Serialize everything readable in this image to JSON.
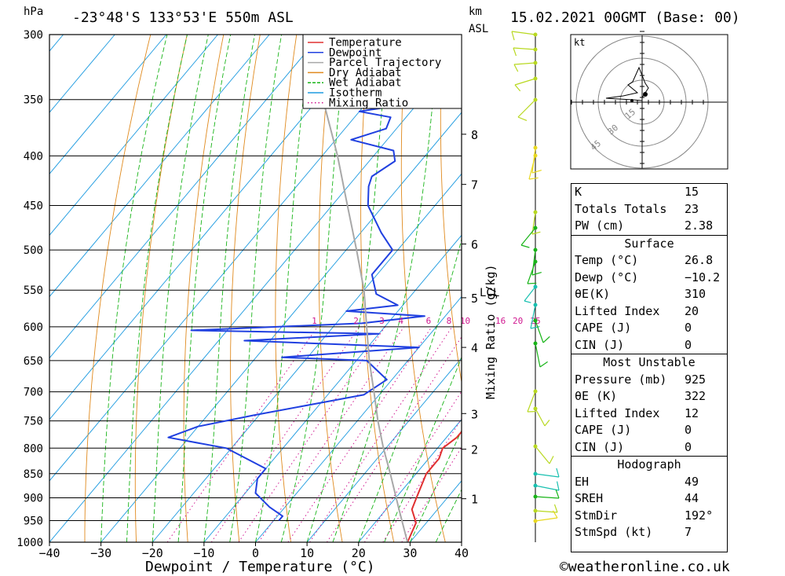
{
  "header": {
    "pressure_unit": "hPa",
    "location": "-23°48'S 133°53'E 550m ASL",
    "height_unit": "km",
    "height_unit_sub": "ASL",
    "datetime": "15.02.2021 00GMT (Base: 00)"
  },
  "chart_data": {
    "type": "skew-t",
    "xlabel": "Dewpoint / Temperature (°C)",
    "ylabel": "hPa",
    "xlim": [
      -40,
      40
    ],
    "ylim": [
      1000,
      300
    ],
    "x_ticks": [
      "−40",
      "−30",
      "−20",
      "−10",
      "0",
      "10",
      "20",
      "30",
      "40"
    ],
    "y_ticks": [
      300,
      350,
      400,
      450,
      500,
      550,
      600,
      650,
      700,
      750,
      800,
      850,
      900,
      950,
      1000
    ],
    "km_ticks": [
      {
        "label": "8",
        "p": 380
      },
      {
        "label": "7",
        "p": 428
      },
      {
        "label": "6",
        "p": 493
      },
      {
        "label": "5",
        "p": 560
      },
      {
        "label": "4",
        "p": 630
      },
      {
        "label": "3",
        "p": 737
      },
      {
        "label": "2",
        "p": 802
      },
      {
        "label": "1",
        "p": 902
      }
    ],
    "lcl_label": "LCL",
    "lcl_p": 553,
    "mixing_ratio_label": "Mixing Ratio (g/kg)",
    "mixing_ratios": [
      "1",
      "2",
      "3",
      "4",
      "6",
      "8",
      "10",
      "16",
      "20",
      "25"
    ],
    "legend": [
      "Temperature",
      "Dewpoint",
      "Parcel Trajectory",
      "Dry Adiabat",
      "Wet Adiabat",
      "Isotherm",
      "Mixing Ratio"
    ],
    "series": [
      {
        "name": "Temperature",
        "points": [
          [
            1000,
            29.5
          ],
          [
            955,
            28
          ],
          [
            925,
            25
          ],
          [
            900,
            24
          ],
          [
            850,
            22
          ],
          [
            820,
            22
          ],
          [
            800,
            21
          ],
          [
            780,
            22
          ],
          [
            750,
            22
          ],
          [
            720,
            21
          ],
          [
            700,
            20
          ],
          [
            660,
            17
          ],
          [
            640,
            16
          ],
          [
            620,
            15
          ],
          [
            600,
            13
          ],
          [
            580,
            12
          ],
          [
            560,
            10
          ],
          [
            550,
            10
          ],
          [
            530,
            10
          ],
          [
            500,
            7
          ],
          [
            470,
            4
          ],
          [
            450,
            2
          ],
          [
            420,
            -1
          ],
          [
            400,
            -4
          ],
          [
            380,
            -8
          ],
          [
            365,
            -12
          ]
        ]
      },
      {
        "name": "Dewpoint",
        "points": [
          [
            950,
            1
          ],
          [
            946,
            1
          ],
          [
            940,
            1
          ],
          [
            920,
            -3
          ],
          [
            890,
            -8
          ],
          [
            860,
            -10
          ],
          [
            840,
            -10
          ],
          [
            800,
            -21
          ],
          [
            780,
            -34
          ],
          [
            760,
            -30
          ],
          [
            740,
            -21
          ],
          [
            705,
            -3
          ],
          [
            680,
            -1
          ],
          [
            650,
            -8
          ],
          [
            645,
            -25
          ],
          [
            630,
            0
          ],
          [
            620,
            -35
          ],
          [
            610,
            -10
          ],
          [
            605,
            -47
          ],
          [
            595,
            -15
          ],
          [
            585,
            -4
          ],
          [
            578,
            -20
          ],
          [
            570,
            -11
          ],
          [
            555,
            -17
          ],
          [
            530,
            -21
          ],
          [
            500,
            -21
          ],
          [
            480,
            -26
          ],
          [
            450,
            -33
          ],
          [
            430,
            -36
          ],
          [
            420,
            -37
          ],
          [
            405,
            -35
          ],
          [
            395,
            -37
          ],
          [
            385,
            -47
          ],
          [
            375,
            -42
          ],
          [
            365,
            -43
          ],
          [
            360,
            -50
          ],
          [
            357,
            -46
          ],
          [
            345,
            -46
          ],
          [
            320,
            -48
          ],
          [
            300,
            -52
          ]
        ]
      },
      {
        "name": "Parcel Trajectory",
        "points": [
          [
            1000,
            29.5
          ],
          [
            925,
            22.5
          ],
          [
            850,
            15
          ],
          [
            800,
            9.5
          ],
          [
            750,
            4
          ],
          [
            700,
            -1.5
          ],
          [
            650,
            -7.5
          ],
          [
            600,
            -13.5
          ],
          [
            550,
            -20
          ],
          [
            500,
            -28
          ],
          [
            450,
            -37
          ],
          [
            400,
            -47
          ],
          [
            350,
            -59
          ],
          [
            310,
            -70
          ]
        ]
      }
    ],
    "wind_barbs_note": "wind profile barbs along right axis"
  },
  "hodograph": {
    "unit": "kt",
    "ring_labels": [
      "15",
      "30",
      "45"
    ]
  },
  "indices": {
    "top": [
      {
        "k": "K",
        "v": "15"
      },
      {
        "k": "Totals Totals",
        "v": "23"
      },
      {
        "k": "PW (cm)",
        "v": "2.38"
      }
    ],
    "surface_title": "Surface",
    "surface": [
      {
        "k": "Temp (°C)",
        "v": "26.8"
      },
      {
        "k": "Dewp (°C)",
        "v": "−10.2"
      },
      {
        "k": "θE(K)",
        "v": "310"
      },
      {
        "k": "Lifted Index",
        "v": "20"
      },
      {
        "k": "CAPE (J)",
        "v": "0"
      },
      {
        "k": "CIN (J)",
        "v": "0"
      }
    ],
    "mu_title": "Most Unstable",
    "mu": [
      {
        "k": "Pressure (mb)",
        "v": "925"
      },
      {
        "k": "θE (K)",
        "v": "322"
      },
      {
        "k": "Lifted Index",
        "v": "12"
      },
      {
        "k": "CAPE (J)",
        "v": "0"
      },
      {
        "k": "CIN (J)",
        "v": "0"
      }
    ],
    "hodo_title": "Hodograph",
    "hodo": [
      {
        "k": "EH",
        "v": "49"
      },
      {
        "k": "SREH",
        "v": "44"
      },
      {
        "k": "StmDir",
        "v": "192°"
      },
      {
        "k": "StmSpd (kt)",
        "v": "7"
      }
    ]
  },
  "footer": {
    "copyright": "©weatheronline.co.uk"
  },
  "colors": {
    "temperature": "#e03030",
    "dewpoint": "#2040e0",
    "parcel": "#a8a8a8",
    "dry_adiabat": "#e08a1e",
    "wet_adiabat": "#18b418",
    "isotherm": "#1e9be0",
    "mixing_ratio": "#d01890"
  }
}
